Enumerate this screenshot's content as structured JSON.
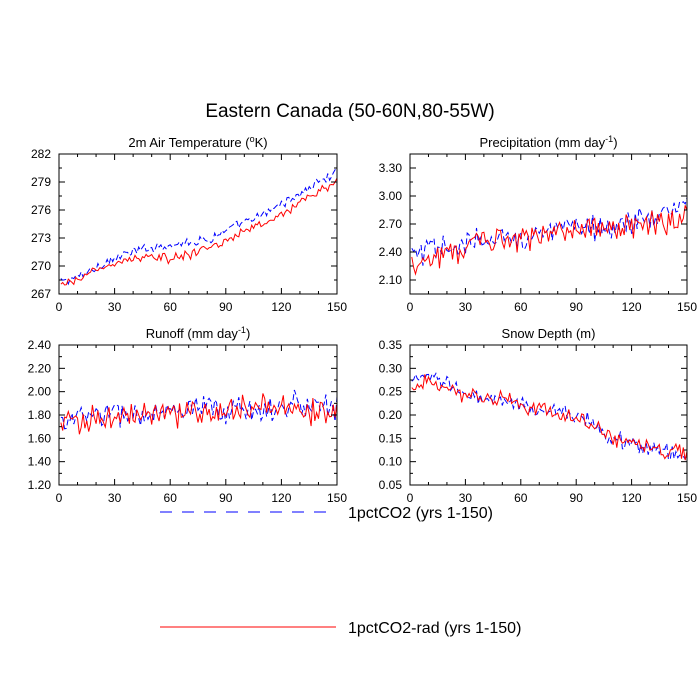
{
  "title": "Eastern Canada (50-60N,80-55W)",
  "colors": {
    "series_a": "#0000ff",
    "series_b": "#ff0000"
  },
  "legend": {
    "placement": "bottom",
    "entries": [
      {
        "label": "1pctCO2 (yrs 1-150)",
        "color": "#0000ff",
        "style": "dashed"
      },
      {
        "label": "1pctCO2-rad (yrs 1-150)",
        "color": "#ff0000",
        "style": "solid"
      }
    ]
  },
  "chart_data": [
    {
      "type": "line",
      "title_main": "2m Air Temperature (",
      "title_sup": "o",
      "title_end": "K)",
      "xlim": [
        0,
        150
      ],
      "ylim": [
        267,
        282
      ],
      "xticks": [
        0,
        30,
        60,
        90,
        120,
        150
      ],
      "yticks": [
        267,
        270,
        273,
        276,
        279,
        282
      ],
      "ytick_labels": [
        "267",
        "270",
        "273",
        "276",
        "279",
        "282"
      ],
      "series": [
        {
          "name": "1pctCO2 (yrs 1-150)",
          "color": "#0000ff",
          "style": "dashed",
          "x": [
            1,
            10,
            20,
            30,
            40,
            50,
            60,
            70,
            80,
            90,
            100,
            110,
            120,
            130,
            140,
            150
          ],
          "y": [
            268.3,
            268.8,
            269.9,
            270.8,
            271.5,
            272.0,
            272.3,
            272.6,
            272.8,
            273.8,
            274.6,
            275.4,
            276.7,
            277.7,
            279.0,
            280.0
          ]
        },
        {
          "name": "1pctCO2-rad (yrs 1-150)",
          "color": "#ff0000",
          "style": "solid",
          "x": [
            1,
            10,
            20,
            30,
            40,
            50,
            60,
            70,
            80,
            90,
            100,
            110,
            120,
            130,
            140,
            150
          ],
          "y": [
            267.8,
            268.5,
            269.6,
            270.2,
            270.8,
            271.0,
            270.8,
            271.2,
            271.8,
            272.6,
            273.8,
            274.5,
            275.5,
            276.8,
            278.0,
            279.0
          ]
        }
      ]
    },
    {
      "type": "line",
      "title_main": "Precipitation (mm day",
      "title_sup": "-1",
      "title_end": ")",
      "xlim": [
        0,
        150
      ],
      "ylim": [
        1.95,
        3.45
      ],
      "xticks": [
        0,
        30,
        60,
        90,
        120,
        150
      ],
      "yticks": [
        2.1,
        2.4,
        2.7,
        3.0,
        3.3
      ],
      "ytick_labels": [
        "2.10",
        "2.40",
        "2.70",
        "3.00",
        "3.30"
      ],
      "series": [
        {
          "name": "1pctCO2 (yrs 1-150)",
          "color": "#0000ff",
          "style": "dashed",
          "x": [
            1,
            10,
            20,
            30,
            40,
            50,
            60,
            70,
            80,
            90,
            100,
            110,
            120,
            130,
            140,
            150
          ],
          "y": [
            2.36,
            2.4,
            2.44,
            2.48,
            2.52,
            2.55,
            2.58,
            2.6,
            2.63,
            2.65,
            2.67,
            2.7,
            2.73,
            2.78,
            2.82,
            2.85
          ]
        },
        {
          "name": "1pctCO2-rad (yrs 1-150)",
          "color": "#ff0000",
          "style": "solid",
          "x": [
            1,
            10,
            20,
            30,
            40,
            50,
            60,
            70,
            80,
            90,
            100,
            110,
            120,
            130,
            140,
            150
          ],
          "y": [
            2.3,
            2.34,
            2.4,
            2.45,
            2.48,
            2.52,
            2.55,
            2.58,
            2.6,
            2.62,
            2.66,
            2.68,
            2.7,
            2.72,
            2.74,
            2.75
          ]
        }
      ]
    },
    {
      "type": "line",
      "title_main": "Runoff (mm day",
      "title_sup": "-1",
      "title_end": ")",
      "xlim": [
        0,
        150
      ],
      "ylim": [
        1.2,
        2.4
      ],
      "xticks": [
        0,
        30,
        60,
        90,
        120,
        150
      ],
      "yticks": [
        1.2,
        1.4,
        1.6,
        1.8,
        2.0,
        2.2,
        2.4
      ],
      "ytick_labels": [
        "1.20",
        "1.40",
        "1.60",
        "1.80",
        "2.00",
        "2.20",
        "2.40"
      ],
      "series": [
        {
          "name": "1pctCO2 (yrs 1-150)",
          "color": "#0000ff",
          "style": "dashed",
          "x": [
            1,
            10,
            20,
            30,
            40,
            50,
            60,
            70,
            80,
            90,
            100,
            110,
            120,
            130,
            140,
            150
          ],
          "y": [
            1.74,
            1.78,
            1.82,
            1.8,
            1.79,
            1.81,
            1.82,
            1.83,
            1.84,
            1.84,
            1.85,
            1.86,
            1.87,
            1.88,
            1.89,
            1.88
          ]
        },
        {
          "name": "1pctCO2-rad (yrs 1-150)",
          "color": "#ff0000",
          "style": "solid",
          "x": [
            1,
            10,
            20,
            30,
            40,
            50,
            60,
            70,
            80,
            90,
            100,
            110,
            120,
            130,
            140,
            150
          ],
          "y": [
            1.72,
            1.76,
            1.78,
            1.77,
            1.78,
            1.8,
            1.8,
            1.82,
            1.83,
            1.84,
            1.86,
            1.87,
            1.86,
            1.85,
            1.84,
            1.85
          ]
        }
      ]
    },
    {
      "type": "line",
      "title_main": "Snow Depth (m)",
      "title_sup": "",
      "title_end": "",
      "xlim": [
        0,
        150
      ],
      "ylim": [
        0.05,
        0.35
      ],
      "xticks": [
        0,
        30,
        60,
        90,
        120,
        150
      ],
      "yticks": [
        0.05,
        0.1,
        0.15,
        0.2,
        0.25,
        0.3,
        0.35
      ],
      "ytick_labels": [
        "0.05",
        "0.10",
        "0.15",
        "0.20",
        "0.25",
        "0.30",
        "0.35"
      ],
      "series": [
        {
          "name": "1pctCO2 (yrs 1-150)",
          "color": "#0000ff",
          "style": "dashed",
          "x": [
            1,
            10,
            20,
            30,
            40,
            50,
            60,
            70,
            80,
            90,
            100,
            110,
            120,
            130,
            140,
            150
          ],
          "y": [
            0.27,
            0.28,
            0.27,
            0.25,
            0.23,
            0.23,
            0.22,
            0.21,
            0.21,
            0.2,
            0.18,
            0.15,
            0.14,
            0.13,
            0.12,
            0.11
          ]
        },
        {
          "name": "1pctCO2-rad (yrs 1-150)",
          "color": "#ff0000",
          "style": "solid",
          "x": [
            1,
            10,
            20,
            30,
            40,
            50,
            60,
            70,
            80,
            90,
            100,
            110,
            120,
            130,
            140,
            150
          ],
          "y": [
            0.26,
            0.28,
            0.26,
            0.24,
            0.23,
            0.24,
            0.22,
            0.21,
            0.2,
            0.19,
            0.17,
            0.15,
            0.14,
            0.13,
            0.12,
            0.12
          ]
        }
      ]
    }
  ]
}
